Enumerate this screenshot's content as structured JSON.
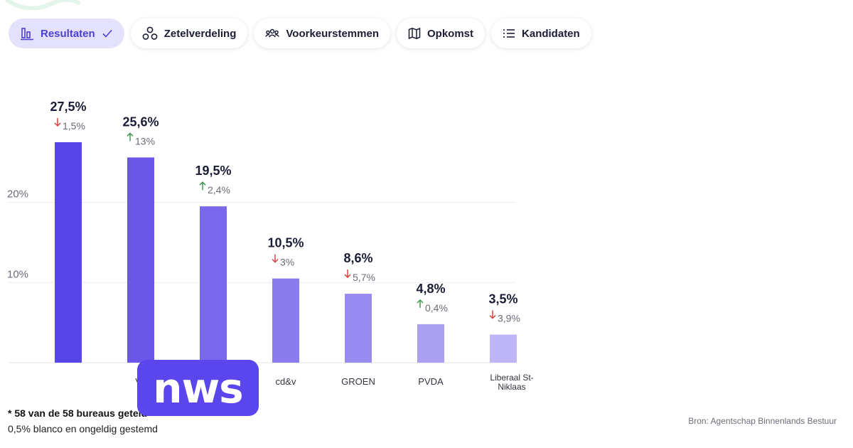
{
  "tabs": [
    {
      "label": "Resultaten",
      "icon": "bar-chart-icon",
      "active": true
    },
    {
      "label": "Zetelverdeling",
      "icon": "seats-icon",
      "active": false
    },
    {
      "label": "Voorkeurstemmen",
      "icon": "people-icon",
      "active": false
    },
    {
      "label": "Opkomst",
      "icon": "map-icon",
      "active": false
    },
    {
      "label": "Kandidaten",
      "icon": "list-icon",
      "active": false
    }
  ],
  "chart_data": {
    "type": "bar",
    "categories": [
      "",
      "Vo",
      "",
      "cd&v",
      "GROEN",
      "PVDA",
      "Liberaal St-Niklaas"
    ],
    "values": [
      27.5,
      25.6,
      19.5,
      10.5,
      8.6,
      4.8,
      3.5
    ],
    "value_labels": [
      "27,5%",
      "25,6%",
      "19,5%",
      "10,5%",
      "8,6%",
      "4,8%",
      "3,5%"
    ],
    "changes": [
      {
        "direction": "down",
        "label": "1,5%"
      },
      {
        "direction": "up",
        "label": "13%"
      },
      {
        "direction": "up",
        "label": "2,4%"
      },
      {
        "direction": "down",
        "label": "3%"
      },
      {
        "direction": "down",
        "label": "5,7%"
      },
      {
        "direction": "up",
        "label": "0,4%"
      },
      {
        "direction": "down",
        "label": "3,9%"
      }
    ],
    "y_ticks": [
      {
        "value": 10,
        "label": "10%"
      },
      {
        "value": 20,
        "label": "20%"
      }
    ],
    "ylim": [
      0,
      27.5
    ],
    "grid": true,
    "bar_colors": [
      "#5845e8",
      "#6a57ea",
      "#7a68ec",
      "#8a7bee",
      "#998cf0",
      "#ab9ff3",
      "#beb5f6"
    ],
    "up_color": "#3d9a50",
    "down_color": "#d24545"
  },
  "notes": {
    "bureaus": "* 58 van de 58 bureaus geteld",
    "blanco": "0,5% blanco en ongeldig gestemd"
  },
  "source": "Bron: Agentschap Binnenlands Bestuur",
  "logo": {
    "text": "nws",
    "color": "#5a46ec"
  }
}
